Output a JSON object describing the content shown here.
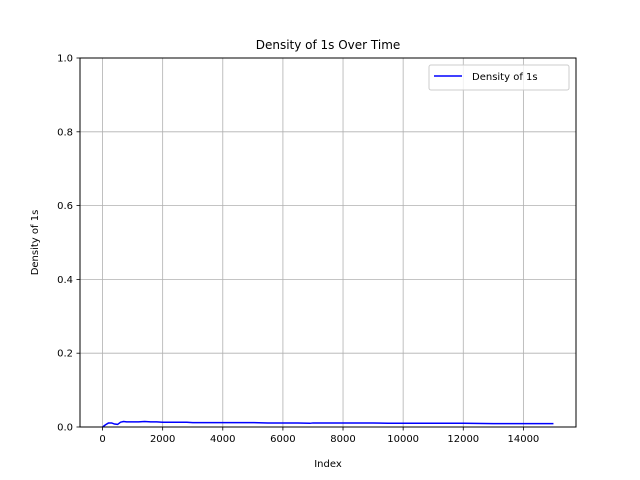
{
  "chart_data": {
    "type": "line",
    "title": "Density of 1s Over Time",
    "xlabel": "Index",
    "ylabel": "Density of 1s",
    "xlim": [
      -750,
      15750
    ],
    "ylim": [
      0,
      1
    ],
    "x_ticks": [
      0,
      2000,
      4000,
      6000,
      8000,
      10000,
      12000,
      14000
    ],
    "x_tick_labels": [
      "0",
      "2000",
      "4000",
      "6000",
      "8000",
      "10000",
      "12000",
      "14000"
    ],
    "y_ticks": [
      0.0,
      0.2,
      0.4,
      0.6,
      0.8,
      1.0
    ],
    "y_tick_labels": [
      "0.0",
      "0.2",
      "0.4",
      "0.6",
      "0.8",
      "1.0"
    ],
    "grid": true,
    "legend_position": "top-right",
    "series": [
      {
        "name": "Density of 1s",
        "color": "#0000ff",
        "x": [
          0,
          100,
          200,
          300,
          400,
          500,
          600,
          700,
          800,
          1000,
          1200,
          1400,
          1600,
          1800,
          2000,
          2200,
          2500,
          2800,
          3000,
          3500,
          4000,
          4500,
          5000,
          5500,
          6000,
          6500,
          6900,
          7000,
          7500,
          8000,
          8500,
          9000,
          9500,
          10000,
          11000,
          12000,
          13000,
          14000,
          15000
        ],
        "values": [
          0.0,
          0.006,
          0.011,
          0.011,
          0.008,
          0.007,
          0.013,
          0.015,
          0.014,
          0.014,
          0.014,
          0.015,
          0.014,
          0.014,
          0.013,
          0.013,
          0.013,
          0.013,
          0.012,
          0.012,
          0.012,
          0.012,
          0.012,
          0.011,
          0.011,
          0.011,
          0.01,
          0.011,
          0.011,
          0.011,
          0.011,
          0.011,
          0.01,
          0.01,
          0.01,
          0.01,
          0.009,
          0.009,
          0.009
        ]
      }
    ]
  }
}
